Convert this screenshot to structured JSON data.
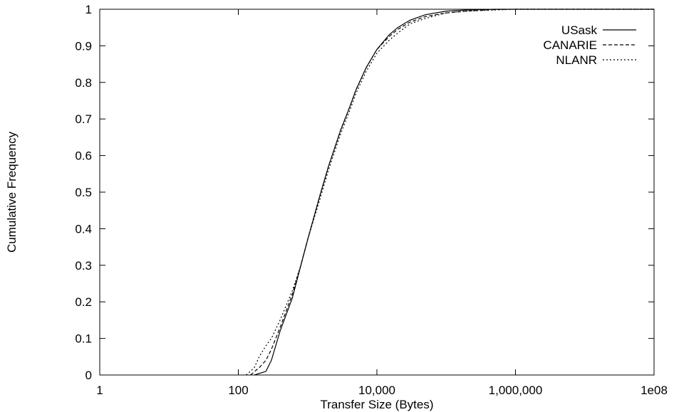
{
  "chart_data": {
    "type": "line",
    "title": "",
    "xlabel": "Transfer Size (Bytes)",
    "ylabel": "Cumulative Frequency",
    "x_scale": "log",
    "xlim": [
      1,
      100000000
    ],
    "ylim": [
      0,
      1
    ],
    "x_ticks": [
      1,
      100,
      10000,
      1000000,
      100000000
    ],
    "x_tick_labels": [
      "1",
      "100",
      "10,000",
      "1,000,000",
      "1e08"
    ],
    "y_ticks": [
      0,
      0.1,
      0.2,
      0.3,
      0.4,
      0.5,
      0.6,
      0.7,
      0.8,
      0.9,
      1
    ],
    "y_tick_labels": [
      "0",
      "0.1",
      "0.2",
      "0.3",
      "0.4",
      "0.5",
      "0.6",
      "0.7",
      "0.8",
      "0.9",
      "1"
    ],
    "grid": false,
    "legend_position": "top-right",
    "series": [
      {
        "name": "USask",
        "dash": "solid",
        "x": [
          170,
          250,
          300,
          400,
          600,
          800,
          1000,
          1500,
          2000,
          3000,
          4000,
          5000,
          7000,
          10000,
          15000,
          20000,
          30000,
          50000,
          100000,
          200000,
          500000,
          1000000,
          100000000
        ],
        "y": [
          0,
          0.01,
          0.04,
          0.12,
          0.21,
          0.3,
          0.37,
          0.49,
          0.57,
          0.67,
          0.73,
          0.78,
          0.84,
          0.89,
          0.93,
          0.95,
          0.97,
          0.985,
          0.995,
          0.998,
          1,
          1,
          1
        ]
      },
      {
        "name": "CANARIE",
        "dash": "dashed",
        "x": [
          150,
          200,
          250,
          300,
          400,
          600,
          800,
          1000,
          1500,
          2000,
          3000,
          4000,
          5000,
          7000,
          10000,
          15000,
          20000,
          30000,
          50000,
          100000,
          200000,
          500000,
          1000000,
          100000000
        ],
        "y": [
          0,
          0.02,
          0.04,
          0.07,
          0.13,
          0.22,
          0.3,
          0.37,
          0.49,
          0.57,
          0.67,
          0.73,
          0.78,
          0.84,
          0.89,
          0.925,
          0.945,
          0.965,
          0.98,
          0.99,
          0.995,
          0.999,
          1,
          1
        ]
      },
      {
        "name": "NLANR",
        "dash": "dotted",
        "x": [
          130,
          170,
          200,
          250,
          300,
          400,
          600,
          800,
          1000,
          1500,
          2000,
          3000,
          4000,
          5000,
          7000,
          10000,
          15000,
          20000,
          30000,
          50000,
          100000,
          200000,
          500000,
          1000000,
          100000000
        ],
        "y": [
          0,
          0.02,
          0.05,
          0.08,
          0.1,
          0.15,
          0.23,
          0.3,
          0.37,
          0.48,
          0.56,
          0.66,
          0.72,
          0.77,
          0.83,
          0.88,
          0.915,
          0.935,
          0.96,
          0.975,
          0.99,
          0.995,
          0.998,
          1,
          1
        ]
      }
    ]
  }
}
